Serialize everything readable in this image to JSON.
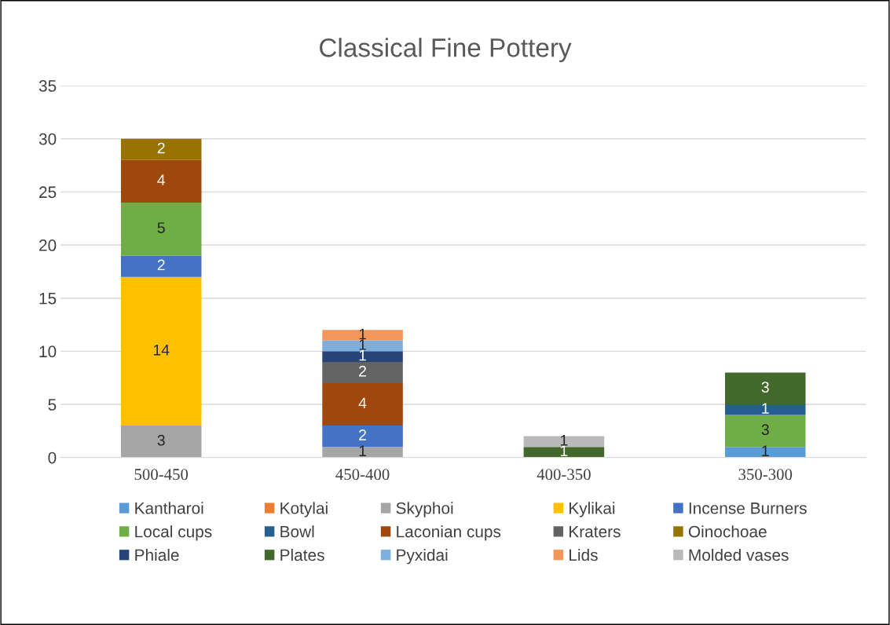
{
  "chart_data": {
    "type": "bar",
    "title": "Classical Fine Pottery",
    "stacked": true,
    "categories": [
      "500-450",
      "450-400",
      "400-350",
      "350-300"
    ],
    "series": [
      {
        "name": "Kantharoi",
        "color": "#5b9bd5",
        "values": [
          null,
          null,
          null,
          1
        ]
      },
      {
        "name": "Kotylai",
        "color": "#ed7d31",
        "values": [
          null,
          null,
          null,
          null
        ]
      },
      {
        "name": "Skyphoi",
        "color": "#a5a5a5",
        "values": [
          3,
          1,
          null,
          null
        ]
      },
      {
        "name": "Kylikai",
        "color": "#ffc000",
        "values": [
          14,
          null,
          null,
          null
        ]
      },
      {
        "name": "Incense Burners",
        "color": "#4472c4",
        "values": [
          2,
          2,
          null,
          null
        ]
      },
      {
        "name": "Local cups",
        "color": "#70ad47",
        "values": [
          5,
          null,
          null,
          3
        ]
      },
      {
        "name": "Bowl",
        "color": "#255e91",
        "values": [
          null,
          null,
          null,
          1
        ]
      },
      {
        "name": "Laconian cups",
        "color": "#9e480e",
        "values": [
          4,
          4,
          null,
          null
        ]
      },
      {
        "name": "Kraters",
        "color": "#636363",
        "values": [
          null,
          2,
          null,
          null
        ]
      },
      {
        "name": "Oinochoae",
        "color": "#997300",
        "values": [
          2,
          null,
          null,
          null
        ]
      },
      {
        "name": "Phiale",
        "color": "#264478",
        "values": [
          null,
          1,
          null,
          null
        ]
      },
      {
        "name": "Plates",
        "color": "#43682b",
        "values": [
          null,
          null,
          1,
          3
        ]
      },
      {
        "name": "Pyxidai",
        "color": "#7cafdd",
        "values": [
          null,
          1,
          null,
          null
        ]
      },
      {
        "name": "Lids",
        "color": "#f1975a",
        "values": [
          null,
          1,
          null,
          null
        ]
      },
      {
        "name": "Molded vases",
        "color": "#b9b9b9",
        "values": [
          null,
          null,
          1,
          null
        ]
      }
    ],
    "ylim": [
      0,
      35
    ],
    "yticks": [
      0,
      5,
      10,
      15,
      20,
      25,
      30,
      35
    ],
    "grid": "y",
    "legend": "bottom",
    "data_labels": true
  }
}
